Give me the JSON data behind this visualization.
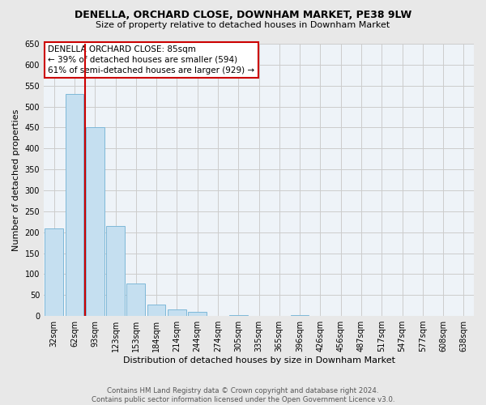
{
  "title": "DENELLA, ORCHARD CLOSE, DOWNHAM MARKET, PE38 9LW",
  "subtitle": "Size of property relative to detached houses in Downham Market",
  "xlabel": "Distribution of detached houses by size in Downham Market",
  "ylabel": "Number of detached properties",
  "footer_line1": "Contains HM Land Registry data © Crown copyright and database right 2024.",
  "footer_line2": "Contains public sector information licensed under the Open Government Licence v3.0.",
  "bar_labels": [
    "32sqm",
    "62sqm",
    "93sqm",
    "123sqm",
    "153sqm",
    "184sqm",
    "214sqm",
    "244sqm",
    "274sqm",
    "305sqm",
    "335sqm",
    "365sqm",
    "396sqm",
    "426sqm",
    "456sqm",
    "487sqm",
    "517sqm",
    "547sqm",
    "577sqm",
    "608sqm",
    "638sqm"
  ],
  "bar_values": [
    210,
    530,
    450,
    215,
    78,
    28,
    15,
    10,
    0,
    3,
    0,
    0,
    2,
    0,
    0,
    1,
    0,
    0,
    0,
    1,
    1
  ],
  "bar_color": "#c5dff0",
  "bar_edge_color": "#7eb8d8",
  "background_color": "#e8e8e8",
  "plot_background_color": "#eef3f8",
  "grid_color": "#cccccc",
  "ylim": [
    0,
    650
  ],
  "yticks": [
    0,
    50,
    100,
    150,
    200,
    250,
    300,
    350,
    400,
    450,
    500,
    550,
    600,
    650
  ],
  "property_line_color": "#cc0000",
  "annotation_title": "DENELLA ORCHARD CLOSE: 85sqm",
  "annotation_line1": "← 39% of detached houses are smaller (594)",
  "annotation_line2": "61% of semi-detached houses are larger (929) →",
  "annotation_box_color": "#ffffff",
  "annotation_box_edge": "#cc0000"
}
